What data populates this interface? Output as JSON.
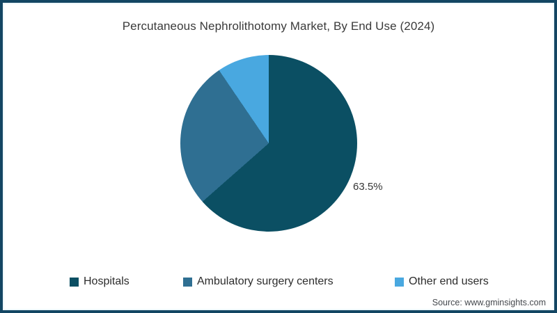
{
  "title": "Percutaneous Nephrolithotomy Market, By End Use (2024)",
  "source_note": "Source: www.gminsights.com",
  "frame_border_color": "#134663",
  "chart_data": {
    "type": "pie",
    "title": "Percutaneous Nephrolithotomy Market, By End Use (2024)",
    "direction": "clockwise",
    "start_angle_deg": 0,
    "legend_position": "bottom",
    "slices": [
      {
        "label": "Hospitals",
        "value": 63.5,
        "color": "#0b4f63",
        "data_label": "63.5%"
      },
      {
        "label": "Ambulatory surgery centers",
        "value": 27.0,
        "color": "#2f6f92",
        "data_label": ""
      },
      {
        "label": "Other end users",
        "value": 9.5,
        "color": "#49a8e0",
        "data_label": ""
      }
    ]
  }
}
